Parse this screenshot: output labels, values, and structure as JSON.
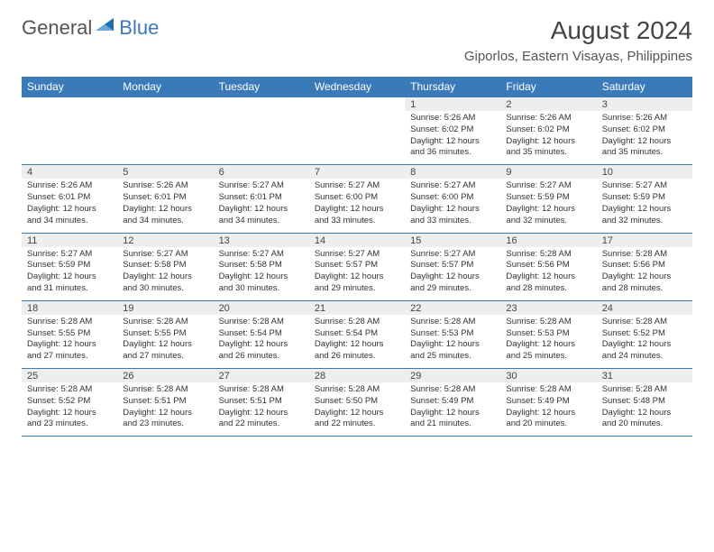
{
  "brand": {
    "word1": "General",
    "word2": "Blue"
  },
  "title": "August 2024",
  "location": "Giporlos, Eastern Visayas, Philippines",
  "colors": {
    "header_bg": "#3a7ab8",
    "header_text": "#ffffff",
    "daynum_bg": "#eeeeee",
    "border": "#3a7ab8",
    "body_text": "#333333",
    "title_text": "#444444",
    "brand_gray": "#555555",
    "brand_blue": "#3a7ab8"
  },
  "day_names": [
    "Sunday",
    "Monday",
    "Tuesday",
    "Wednesday",
    "Thursday",
    "Friday",
    "Saturday"
  ],
  "weeks": [
    [
      null,
      null,
      null,
      null,
      {
        "n": "1",
        "sr": "5:26 AM",
        "ss": "6:02 PM",
        "dl": "12 hours and 36 minutes."
      },
      {
        "n": "2",
        "sr": "5:26 AM",
        "ss": "6:02 PM",
        "dl": "12 hours and 35 minutes."
      },
      {
        "n": "3",
        "sr": "5:26 AM",
        "ss": "6:02 PM",
        "dl": "12 hours and 35 minutes."
      }
    ],
    [
      {
        "n": "4",
        "sr": "5:26 AM",
        "ss": "6:01 PM",
        "dl": "12 hours and 34 minutes."
      },
      {
        "n": "5",
        "sr": "5:26 AM",
        "ss": "6:01 PM",
        "dl": "12 hours and 34 minutes."
      },
      {
        "n": "6",
        "sr": "5:27 AM",
        "ss": "6:01 PM",
        "dl": "12 hours and 34 minutes."
      },
      {
        "n": "7",
        "sr": "5:27 AM",
        "ss": "6:00 PM",
        "dl": "12 hours and 33 minutes."
      },
      {
        "n": "8",
        "sr": "5:27 AM",
        "ss": "6:00 PM",
        "dl": "12 hours and 33 minutes."
      },
      {
        "n": "9",
        "sr": "5:27 AM",
        "ss": "5:59 PM",
        "dl": "12 hours and 32 minutes."
      },
      {
        "n": "10",
        "sr": "5:27 AM",
        "ss": "5:59 PM",
        "dl": "12 hours and 32 minutes."
      }
    ],
    [
      {
        "n": "11",
        "sr": "5:27 AM",
        "ss": "5:59 PM",
        "dl": "12 hours and 31 minutes."
      },
      {
        "n": "12",
        "sr": "5:27 AM",
        "ss": "5:58 PM",
        "dl": "12 hours and 30 minutes."
      },
      {
        "n": "13",
        "sr": "5:27 AM",
        "ss": "5:58 PM",
        "dl": "12 hours and 30 minutes."
      },
      {
        "n": "14",
        "sr": "5:27 AM",
        "ss": "5:57 PM",
        "dl": "12 hours and 29 minutes."
      },
      {
        "n": "15",
        "sr": "5:27 AM",
        "ss": "5:57 PM",
        "dl": "12 hours and 29 minutes."
      },
      {
        "n": "16",
        "sr": "5:28 AM",
        "ss": "5:56 PM",
        "dl": "12 hours and 28 minutes."
      },
      {
        "n": "17",
        "sr": "5:28 AM",
        "ss": "5:56 PM",
        "dl": "12 hours and 28 minutes."
      }
    ],
    [
      {
        "n": "18",
        "sr": "5:28 AM",
        "ss": "5:55 PM",
        "dl": "12 hours and 27 minutes."
      },
      {
        "n": "19",
        "sr": "5:28 AM",
        "ss": "5:55 PM",
        "dl": "12 hours and 27 minutes."
      },
      {
        "n": "20",
        "sr": "5:28 AM",
        "ss": "5:54 PM",
        "dl": "12 hours and 26 minutes."
      },
      {
        "n": "21",
        "sr": "5:28 AM",
        "ss": "5:54 PM",
        "dl": "12 hours and 26 minutes."
      },
      {
        "n": "22",
        "sr": "5:28 AM",
        "ss": "5:53 PM",
        "dl": "12 hours and 25 minutes."
      },
      {
        "n": "23",
        "sr": "5:28 AM",
        "ss": "5:53 PM",
        "dl": "12 hours and 25 minutes."
      },
      {
        "n": "24",
        "sr": "5:28 AM",
        "ss": "5:52 PM",
        "dl": "12 hours and 24 minutes."
      }
    ],
    [
      {
        "n": "25",
        "sr": "5:28 AM",
        "ss": "5:52 PM",
        "dl": "12 hours and 23 minutes."
      },
      {
        "n": "26",
        "sr": "5:28 AM",
        "ss": "5:51 PM",
        "dl": "12 hours and 23 minutes."
      },
      {
        "n": "27",
        "sr": "5:28 AM",
        "ss": "5:51 PM",
        "dl": "12 hours and 22 minutes."
      },
      {
        "n": "28",
        "sr": "5:28 AM",
        "ss": "5:50 PM",
        "dl": "12 hours and 22 minutes."
      },
      {
        "n": "29",
        "sr": "5:28 AM",
        "ss": "5:49 PM",
        "dl": "12 hours and 21 minutes."
      },
      {
        "n": "30",
        "sr": "5:28 AM",
        "ss": "5:49 PM",
        "dl": "12 hours and 20 minutes."
      },
      {
        "n": "31",
        "sr": "5:28 AM",
        "ss": "5:48 PM",
        "dl": "12 hours and 20 minutes."
      }
    ]
  ],
  "labels": {
    "sunrise": "Sunrise: ",
    "sunset": "Sunset: ",
    "daylight": "Daylight: "
  }
}
